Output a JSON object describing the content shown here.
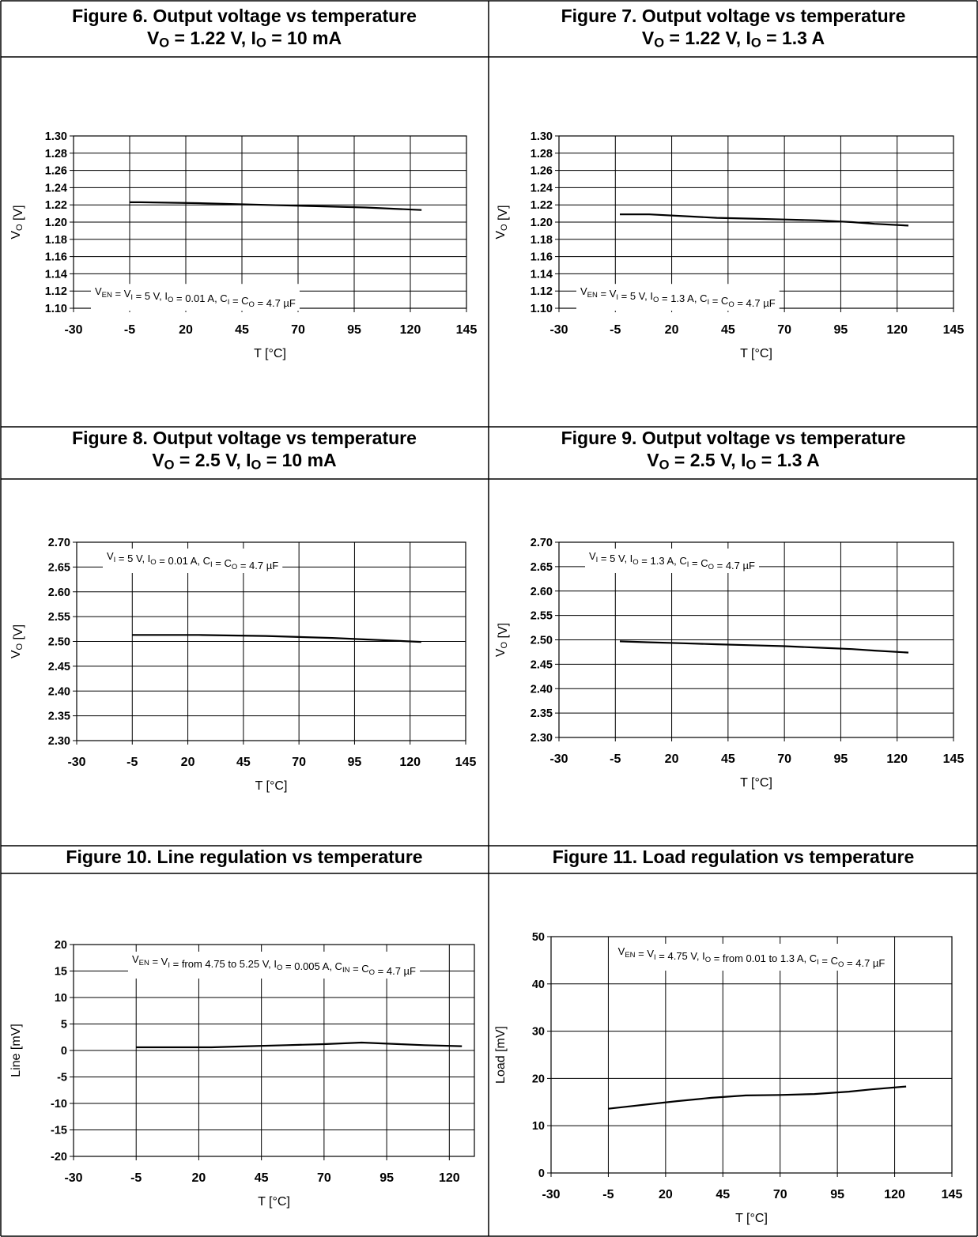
{
  "figures": [
    {
      "title": "Figure 6. Output voltage vs temperature",
      "subtitle": "V<sub>O</sub> = 1.22 V, I<sub>O</sub> = 10 mA"
    },
    {
      "title": "Figure 7. Output voltage vs temperature",
      "subtitle": "V<sub>O</sub> = 1.22 V, I<sub>O</sub> = 1.3 A"
    },
    {
      "title": "Figure 8. Output voltage vs temperature",
      "subtitle": "V<sub>O</sub> = 2.5 V, I<sub>O</sub> = 10 mA"
    },
    {
      "title": "Figure 9. Output voltage vs temperature",
      "subtitle": "V<sub>O</sub> = 2.5 V, I<sub>O</sub> = 1.3 A"
    },
    {
      "title": "Figure 10. Line regulation vs temperature",
      "subtitle": ""
    },
    {
      "title": "Figure 11. Load regulation vs temperature",
      "subtitle": ""
    }
  ],
  "chart_data": [
    {
      "type": "line",
      "xlabel": "T [°C]",
      "ylabel": "V<sub>O</sub> [V]",
      "xlim": [
        -30,
        145
      ],
      "ylim": [
        1.1,
        1.3
      ],
      "xticks": [
        -30,
        -5,
        20,
        45,
        70,
        95,
        120,
        145
      ],
      "xtick_labels": [
        "-30",
        "-5",
        "20",
        "45",
        "70",
        "95",
        "120",
        "145"
      ],
      "yticks": [
        1.1,
        1.12,
        1.14,
        1.16,
        1.18,
        1.2,
        1.22,
        1.24,
        1.26,
        1.28,
        1.3
      ],
      "ytick_labels": [
        "1.10",
        "1.12",
        "1.14",
        "1.16",
        "1.18",
        "1.20",
        "1.22",
        "1.24",
        "1.26",
        "1.28",
        "1.30"
      ],
      "grid": true,
      "annotation": "V<sub>EN</sub> = V<sub>I</sub> = 5 V, I<sub>O</sub> = 0.01 A, C<sub>I</sub> = C<sub>O</sub> = 4.7 µF",
      "annotation_position": "bottom-left",
      "series": [
        {
          "x": [
            -5,
            0,
            25,
            40,
            55,
            85,
            100,
            125
          ],
          "y": [
            1.223,
            1.223,
            1.222,
            1.221,
            1.22,
            1.218,
            1.217,
            1.214
          ]
        }
      ]
    },
    {
      "type": "line",
      "xlabel": "T [°C]",
      "ylabel": "V<sub>O</sub> [V]",
      "xlim": [
        -30,
        145
      ],
      "ylim": [
        1.1,
        1.3
      ],
      "xticks": [
        -30,
        -5,
        20,
        45,
        70,
        95,
        120,
        145
      ],
      "xtick_labels": [
        "-30",
        "-5",
        "20",
        "45",
        "70",
        "95",
        "120",
        "145"
      ],
      "yticks": [
        1.1,
        1.12,
        1.14,
        1.16,
        1.18,
        1.2,
        1.22,
        1.24,
        1.26,
        1.28,
        1.3
      ],
      "ytick_labels": [
        "1.10",
        "1.12",
        "1.14",
        "1.16",
        "1.18",
        "1.20",
        "1.22",
        "1.24",
        "1.26",
        "1.28",
        "1.30"
      ],
      "grid": true,
      "annotation": "V<sub>EN</sub> = V<sub>I</sub> = 5 V, I<sub>O</sub> = 1.3 A, C<sub>I</sub> = C<sub>O</sub> = 4.7 µF",
      "annotation_position": "bottom-left",
      "series": [
        {
          "x": [
            -3,
            10,
            25,
            40,
            55,
            70,
            85,
            100,
            110,
            125
          ],
          "y": [
            1.209,
            1.209,
            1.207,
            1.205,
            1.204,
            1.203,
            1.202,
            1.2,
            1.198,
            1.196
          ]
        }
      ]
    },
    {
      "type": "line",
      "xlabel": "T [°C]",
      "ylabel": "V<sub>O</sub> [V]",
      "xlim": [
        -30,
        145
      ],
      "ylim": [
        2.3,
        2.7
      ],
      "xticks": [
        -30,
        -5,
        20,
        45,
        70,
        95,
        120,
        145
      ],
      "xtick_labels": [
        "-30",
        "-5",
        "20",
        "45",
        "70",
        "95",
        "120",
        "145"
      ],
      "yticks": [
        2.3,
        2.35,
        2.4,
        2.45,
        2.5,
        2.55,
        2.6,
        2.65,
        2.7
      ],
      "ytick_labels": [
        "2.30",
        "2.35",
        "2.40",
        "2.45",
        "2.50",
        "2.55",
        "2.60",
        "2.65",
        "2.70"
      ],
      "grid": true,
      "annotation": "V<sub>I</sub> = 5 V, I<sub>O</sub> = 0.01 A, C<sub>I</sub> = C<sub>O</sub> = 4.7 µF",
      "annotation_position": "top-left",
      "series": [
        {
          "x": [
            -5,
            25,
            40,
            55,
            70,
            85,
            100,
            110,
            125
          ],
          "y": [
            2.513,
            2.513,
            2.512,
            2.511,
            2.509,
            2.507,
            2.504,
            2.502,
            2.499
          ]
        }
      ]
    },
    {
      "type": "line",
      "xlabel": "T [°C]",
      "ylabel": "V<sub>O</sub> [V]",
      "xlim": [
        -30,
        145
      ],
      "ylim": [
        2.3,
        2.7
      ],
      "xticks": [
        -30,
        -5,
        20,
        45,
        70,
        95,
        120,
        145
      ],
      "xtick_labels": [
        "-30",
        "-5",
        "20",
        "45",
        "70",
        "95",
        "120",
        "145"
      ],
      "yticks": [
        2.3,
        2.35,
        2.4,
        2.45,
        2.5,
        2.55,
        2.6,
        2.65,
        2.7
      ],
      "ytick_labels": [
        "2.30",
        "2.35",
        "2.40",
        "2.45",
        "2.50",
        "2.55",
        "2.60",
        "2.65",
        "2.70"
      ],
      "grid": true,
      "annotation": "V<sub>I</sub> = 5 V, I<sub>O</sub> = 1.3 A, C<sub>I</sub> = C<sub>O</sub> = 4.7 µF",
      "annotation_position": "top-left",
      "series": [
        {
          "x": [
            -3,
            10,
            25,
            40,
            55,
            70,
            85,
            100,
            110,
            125
          ],
          "y": [
            2.497,
            2.495,
            2.493,
            2.491,
            2.489,
            2.487,
            2.484,
            2.481,
            2.478,
            2.474
          ]
        }
      ]
    },
    {
      "type": "line",
      "xlabel": "T [°C]",
      "ylabel": "Line [mV]",
      "xlim": [
        -30,
        130
      ],
      "ylim": [
        -20,
        20
      ],
      "xticks": [
        -30,
        -5,
        20,
        45,
        70,
        95,
        120
      ],
      "xtick_labels": [
        "-30",
        "-5",
        "20",
        "45",
        "70",
        "95",
        "120"
      ],
      "yticks": [
        -20,
        -15,
        -10,
        -5,
        0,
        5,
        10,
        15,
        20
      ],
      "ytick_labels": [
        "-20",
        "-15",
        "-10",
        "-5",
        "0",
        "5",
        "10",
        "15",
        "20"
      ],
      "grid": true,
      "annotation": "V<sub>EN</sub> = V<sub>I</sub> = from 4.75 to 5.25 V, I<sub>O</sub> = 0.005 A, C<sub>IN</sub> = C<sub>O</sub> = 4.7 µF",
      "annotation_position": "top-center",
      "series": [
        {
          "x": [
            -5,
            10,
            25,
            40,
            55,
            70,
            85,
            100,
            110,
            125
          ],
          "y": [
            0.6,
            0.6,
            0.6,
            0.8,
            1.0,
            1.2,
            1.5,
            1.2,
            1.0,
            0.8
          ]
        }
      ]
    },
    {
      "type": "line",
      "xlabel": "T [°C]",
      "ylabel": "Load [mV]",
      "xlim": [
        -30,
        145
      ],
      "ylim": [
        0,
        50
      ],
      "xticks": [
        -30,
        -5,
        20,
        45,
        70,
        95,
        120,
        145
      ],
      "xtick_labels": [
        "-30",
        "-5",
        "20",
        "45",
        "70",
        "95",
        "120",
        "145"
      ],
      "yticks": [
        0,
        10,
        20,
        30,
        40,
        50
      ],
      "ytick_labels": [
        "0",
        "10",
        "20",
        "30",
        "40",
        "50"
      ],
      "grid": true,
      "annotation": "V<sub>EN</sub> = V<sub>I</sub> = 4.75 V, I<sub>O</sub> = from 0.01 to 1.3 A, C<sub>I</sub> = C<sub>O</sub> = 4.7 µF",
      "annotation_position": "top-center",
      "series": [
        {
          "x": [
            -5,
            10,
            25,
            40,
            55,
            70,
            85,
            100,
            110,
            125
          ],
          "y": [
            13.6,
            14.4,
            15.2,
            15.9,
            16.4,
            16.5,
            16.7,
            17.2,
            17.7,
            18.3
          ]
        }
      ]
    }
  ]
}
